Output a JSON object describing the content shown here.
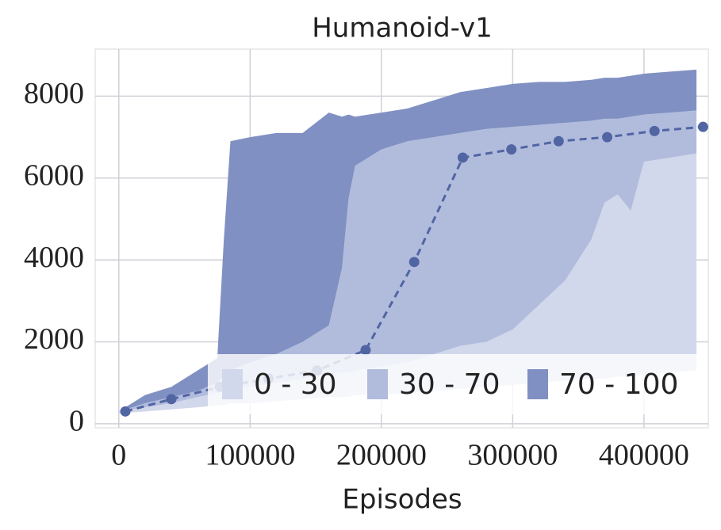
{
  "chart_data": {
    "type": "band",
    "title": "Humanoid-v1",
    "x_label": "Episodes",
    "x": [
      0,
      20000,
      40000,
      60000,
      75000,
      80000,
      85000,
      100000,
      120000,
      140000,
      160000,
      170000,
      175000,
      180000,
      200000,
      220000,
      240000,
      260000,
      280000,
      300000,
      320000,
      340000,
      360000,
      370000,
      380000,
      390000,
      400000,
      420000,
      440000
    ],
    "series": [
      {
        "name": "0 - 30",
        "color": "#d2d8eb",
        "low": [
          250,
          300,
          350,
          400,
          450,
          450,
          500,
          500,
          550,
          600,
          650,
          650,
          650,
          700,
          700,
          750,
          800,
          850,
          900,
          950,
          1000,
          1050,
          1100,
          1100,
          1150,
          1150,
          1200,
          1250,
          1300
        ],
        "high": [
          300,
          400,
          500,
          650,
          750,
          800,
          850,
          900,
          1000,
          1100,
          1200,
          1250,
          1250,
          1300,
          1400,
          1500,
          1700,
          1900,
          2000,
          2300,
          2900,
          3500,
          4500,
          5400,
          5600,
          5200,
          6400,
          6500,
          6600
        ]
      },
      {
        "name": "30 - 70",
        "color": "#b1bcdd",
        "low": [
          300,
          400,
          500,
          650,
          750,
          800,
          850,
          900,
          1000,
          1100,
          1200,
          1250,
          1250,
          1300,
          1400,
          1500,
          1700,
          1900,
          2000,
          2300,
          2900,
          3500,
          4500,
          5400,
          5600,
          5200,
          6400,
          6500,
          6600
        ],
        "high": [
          300,
          500,
          650,
          800,
          1000,
          1200,
          1300,
          1500,
          1700,
          2000,
          2400,
          3800,
          5500,
          6300,
          6700,
          6900,
          7000,
          7100,
          7200,
          7250,
          7300,
          7350,
          7400,
          7450,
          7450,
          7500,
          7550,
          7600,
          7650
        ]
      },
      {
        "name": "70 - 100",
        "color": "#8090c2",
        "low": [
          300,
          500,
          650,
          800,
          1000,
          1200,
          1300,
          1500,
          1700,
          2000,
          2400,
          3800,
          5500,
          6300,
          6700,
          6900,
          7000,
          7100,
          7200,
          7250,
          7300,
          7350,
          7400,
          7450,
          7450,
          7500,
          7550,
          7600,
          7650
        ],
        "high": [
          300,
          700,
          900,
          1300,
          1600,
          4500,
          6900,
          7000,
          7100,
          7100,
          7600,
          7500,
          7550,
          7500,
          7600,
          7700,
          7900,
          8100,
          8200,
          8300,
          8350,
          8350,
          8400,
          8450,
          8450,
          8500,
          8550,
          8600,
          8650
        ]
      }
    ],
    "median": {
      "color": "#5265a3",
      "x": [
        5000,
        40000,
        77000,
        114000,
        151000,
        188000,
        225000,
        262000,
        299000,
        335000,
        372000,
        408000,
        445000
      ],
      "values": [
        300,
        600,
        900,
        1100,
        1300,
        1800,
        3950,
        6500,
        6700,
        6900,
        7000,
        7150,
        7250
      ]
    },
    "xlim": [
      -18000,
      449000
    ],
    "ylim": [
      -100,
      9150
    ],
    "xticks": [
      0,
      100000,
      200000,
      300000,
      400000
    ],
    "yticks": [
      0,
      2000,
      4000,
      6000,
      8000
    ],
    "grid": true,
    "legend": "lower right"
  }
}
